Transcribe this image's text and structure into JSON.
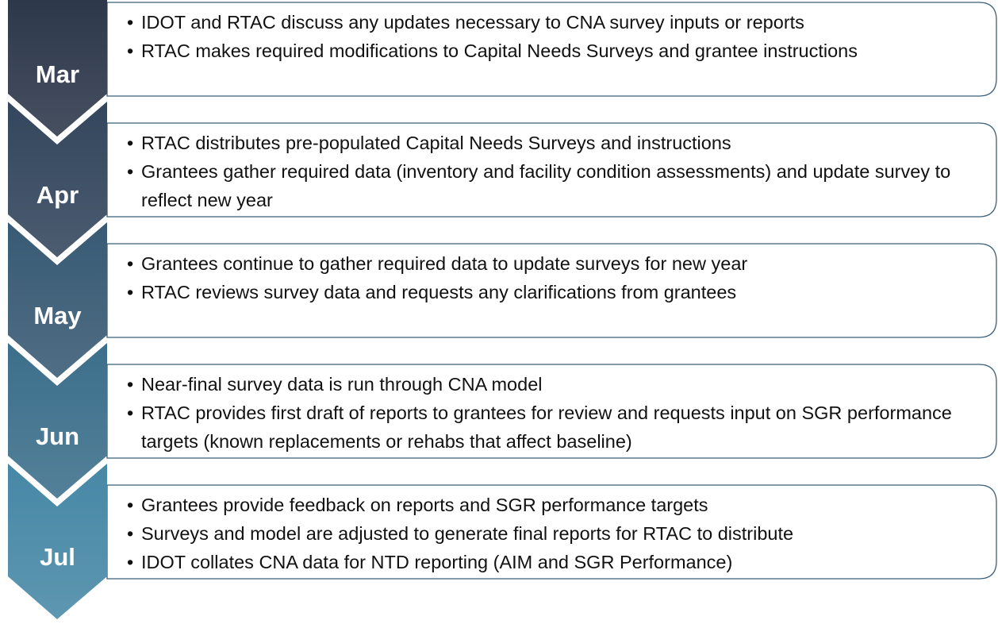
{
  "steps": [
    {
      "label": "Mar",
      "bullets": [
        "IDOT and RTAC discuss any updates necessary to CNA survey inputs or reports",
        "RTAC makes required modifications to Capital Needs Surveys and grantee instructions"
      ]
    },
    {
      "label": "Apr",
      "bullets": [
        "RTAC distributes pre-populated Capital Needs Surveys and instructions",
        "Grantees gather required data (inventory and facility condition assessments) and update survey to reflect new year"
      ]
    },
    {
      "label": "May",
      "bullets": [
        "Grantees continue to gather required data to update surveys for new year",
        "RTAC reviews survey data and requests any clarifications from grantees"
      ]
    },
    {
      "label": "Jun",
      "bullets": [
        "Near-final survey data is run through CNA model",
        "RTAC provides first draft of reports to grantees for review and requests input on SGR performance targets (known replacements or rehabs that affect baseline)"
      ]
    },
    {
      "label": "Jul",
      "bullets": [
        "Grantees provide feedback on reports and SGR performance targets",
        "Surveys and model are adjusted to generate final reports for RTAC to distribute",
        "IDOT collates CNA data for NTD reporting (AIM and SGR Performance)"
      ]
    }
  ]
}
